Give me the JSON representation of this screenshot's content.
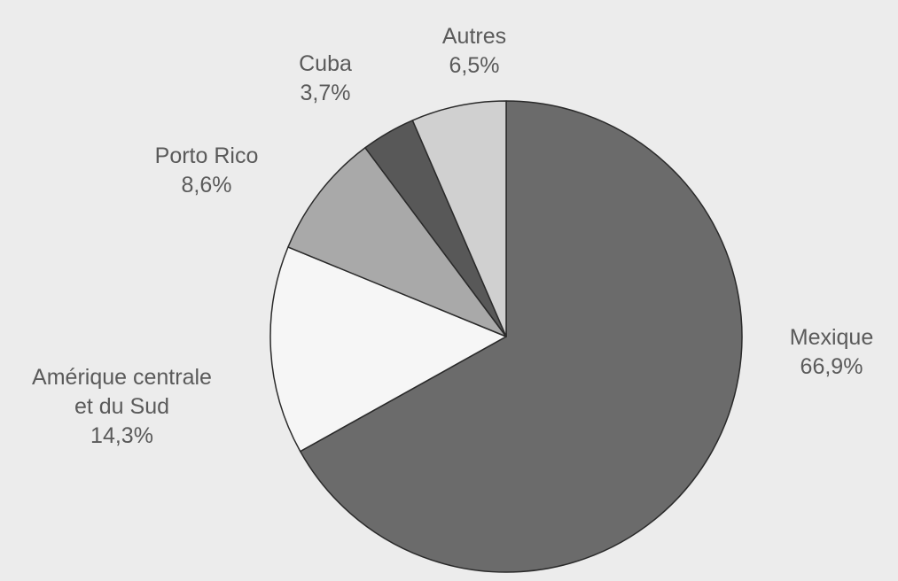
{
  "chart_data": {
    "type": "pie",
    "slices": [
      {
        "label": "Mexique",
        "value": 66.9,
        "value_label": "66,9%",
        "color": "#6b6b6b"
      },
      {
        "label": "Amérique centrale et du Sud",
        "label_lines": [
          "Amérique centrale",
          "et du Sud"
        ],
        "value": 14.3,
        "value_label": "14,3%",
        "color": "#f6f6f6"
      },
      {
        "label": "Porto Rico",
        "value": 8.6,
        "value_label": "8,6%",
        "color": "#a9a9a9"
      },
      {
        "label": "Cuba",
        "value": 3.7,
        "value_label": "3,7%",
        "color": "#585858"
      },
      {
        "label": "Autres",
        "value": 6.5,
        "value_label": "6,5%",
        "color": "#d0d0d0"
      }
    ],
    "start_angle_deg": 0,
    "direction": "clockwise-from-top",
    "legend": "none"
  }
}
